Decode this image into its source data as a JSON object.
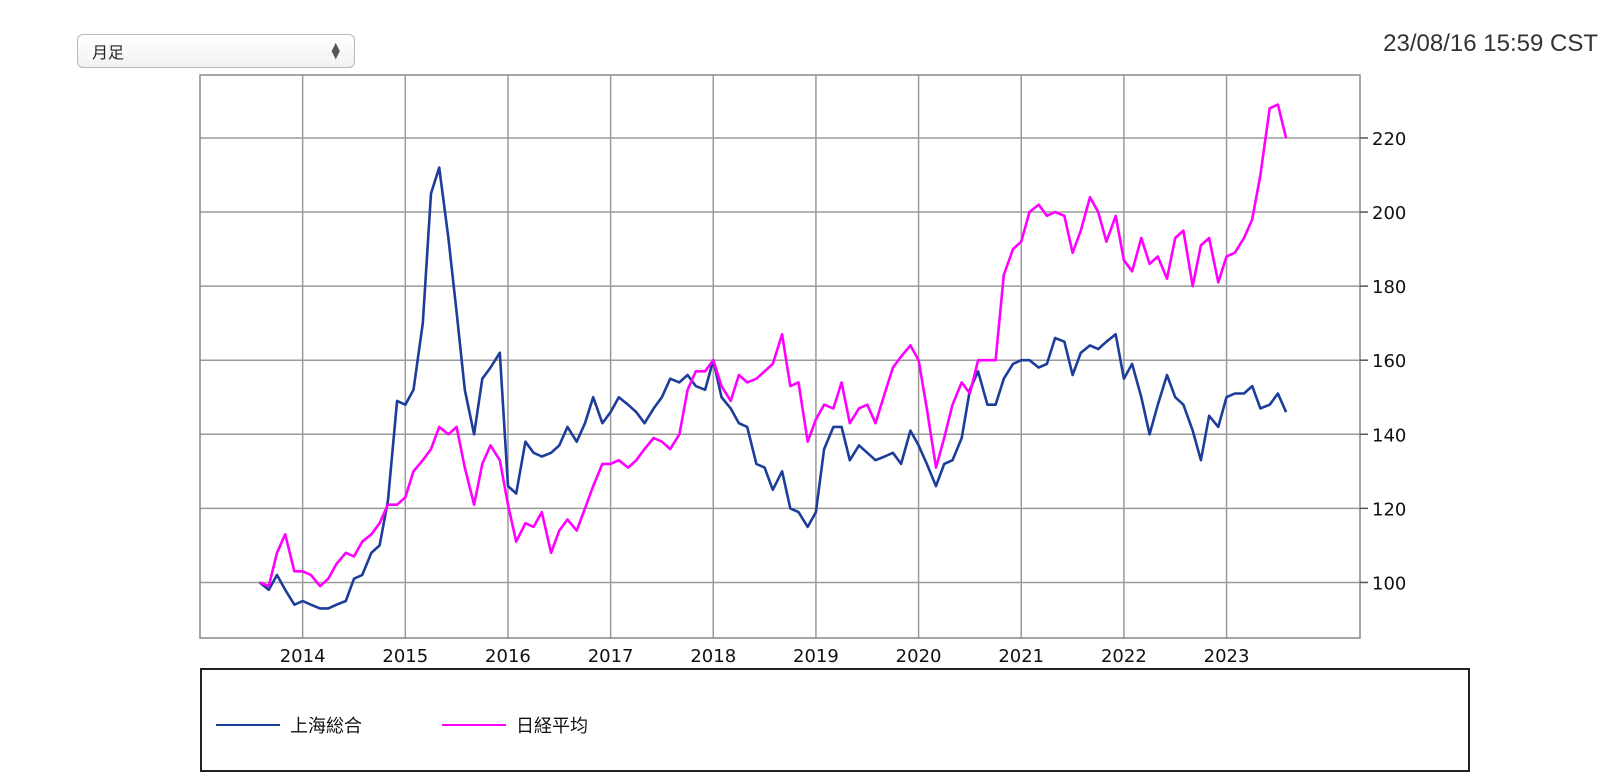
{
  "toolbar": {
    "period_select": {
      "value": "月足"
    }
  },
  "timestamp": "23/08/16 15:59 CST",
  "colors": {
    "shanghai": "#1c3d99",
    "nikkei": "#ff00ff"
  },
  "chart_data": {
    "type": "line",
    "title": "",
    "xlabel": "",
    "ylabel": "",
    "x_ticks": [
      "2014",
      "2015",
      "2016",
      "2017",
      "2018",
      "2019",
      "2020",
      "2021",
      "2022",
      "2023"
    ],
    "y_ticks": [
      100,
      120,
      140,
      160,
      180,
      200,
      220
    ],
    "ylim": [
      85,
      237
    ],
    "xlim": [
      2013.0,
      2024.3
    ],
    "grid": true,
    "legend_position": "bottom",
    "series": [
      {
        "name": "上海総合",
        "color": "#1c3d99",
        "points": [
          [
            2013.58,
            100
          ],
          [
            2013.67,
            98
          ],
          [
            2013.75,
            102
          ],
          [
            2013.83,
            98
          ],
          [
            2013.92,
            94
          ],
          [
            2014.0,
            95
          ],
          [
            2014.08,
            94
          ],
          [
            2014.17,
            93
          ],
          [
            2014.25,
            93
          ],
          [
            2014.33,
            94
          ],
          [
            2014.42,
            95
          ],
          [
            2014.5,
            101
          ],
          [
            2014.58,
            102
          ],
          [
            2014.67,
            108
          ],
          [
            2014.75,
            110
          ],
          [
            2014.83,
            122
          ],
          [
            2014.92,
            149
          ],
          [
            2015.0,
            148
          ],
          [
            2015.08,
            152
          ],
          [
            2015.17,
            170
          ],
          [
            2015.25,
            205
          ],
          [
            2015.33,
            212
          ],
          [
            2015.42,
            193
          ],
          [
            2015.5,
            173
          ],
          [
            2015.58,
            152
          ],
          [
            2015.67,
            140
          ],
          [
            2015.75,
            155
          ],
          [
            2015.83,
            158
          ],
          [
            2015.92,
            162
          ],
          [
            2016.0,
            126
          ],
          [
            2016.08,
            124
          ],
          [
            2016.17,
            138
          ],
          [
            2016.25,
            135
          ],
          [
            2016.33,
            134
          ],
          [
            2016.42,
            135
          ],
          [
            2016.5,
            137
          ],
          [
            2016.58,
            142
          ],
          [
            2016.67,
            138
          ],
          [
            2016.75,
            143
          ],
          [
            2016.83,
            150
          ],
          [
            2016.92,
            143
          ],
          [
            2017.0,
            146
          ],
          [
            2017.08,
            150
          ],
          [
            2017.17,
            148
          ],
          [
            2017.25,
            146
          ],
          [
            2017.33,
            143
          ],
          [
            2017.42,
            147
          ],
          [
            2017.5,
            150
          ],
          [
            2017.58,
            155
          ],
          [
            2017.67,
            154
          ],
          [
            2017.75,
            156
          ],
          [
            2017.83,
            153
          ],
          [
            2017.92,
            152
          ],
          [
            2018.0,
            160
          ],
          [
            2018.08,
            150
          ],
          [
            2018.17,
            147
          ],
          [
            2018.25,
            143
          ],
          [
            2018.33,
            142
          ],
          [
            2018.42,
            132
          ],
          [
            2018.5,
            131
          ],
          [
            2018.58,
            125
          ],
          [
            2018.67,
            130
          ],
          [
            2018.75,
            120
          ],
          [
            2018.83,
            119
          ],
          [
            2018.92,
            115
          ],
          [
            2019.0,
            119
          ],
          [
            2019.08,
            136
          ],
          [
            2019.17,
            142
          ],
          [
            2019.25,
            142
          ],
          [
            2019.33,
            133
          ],
          [
            2019.42,
            137
          ],
          [
            2019.5,
            135
          ],
          [
            2019.58,
            133
          ],
          [
            2019.67,
            134
          ],
          [
            2019.75,
            135
          ],
          [
            2019.83,
            132
          ],
          [
            2019.92,
            141
          ],
          [
            2020.0,
            137
          ],
          [
            2020.08,
            132
          ],
          [
            2020.17,
            126
          ],
          [
            2020.25,
            132
          ],
          [
            2020.33,
            133
          ],
          [
            2020.42,
            139
          ],
          [
            2020.5,
            152
          ],
          [
            2020.58,
            157
          ],
          [
            2020.67,
            148
          ],
          [
            2020.75,
            148
          ],
          [
            2020.83,
            155
          ],
          [
            2020.92,
            159
          ],
          [
            2021.0,
            160
          ],
          [
            2021.08,
            160
          ],
          [
            2021.17,
            158
          ],
          [
            2021.25,
            159
          ],
          [
            2021.33,
            166
          ],
          [
            2021.42,
            165
          ],
          [
            2021.5,
            156
          ],
          [
            2021.58,
            162
          ],
          [
            2021.67,
            164
          ],
          [
            2021.75,
            163
          ],
          [
            2021.83,
            165
          ],
          [
            2021.92,
            167
          ],
          [
            2022.0,
            155
          ],
          [
            2022.08,
            159
          ],
          [
            2022.17,
            150
          ],
          [
            2022.25,
            140
          ],
          [
            2022.33,
            148
          ],
          [
            2022.42,
            156
          ],
          [
            2022.5,
            150
          ],
          [
            2022.58,
            148
          ],
          [
            2022.67,
            141
          ],
          [
            2022.75,
            133
          ],
          [
            2022.83,
            145
          ],
          [
            2022.92,
            142
          ],
          [
            2023.0,
            150
          ],
          [
            2023.08,
            151
          ],
          [
            2023.17,
            151
          ],
          [
            2023.25,
            153
          ],
          [
            2023.33,
            147
          ],
          [
            2023.42,
            148
          ],
          [
            2023.5,
            151
          ],
          [
            2023.58,
            146
          ]
        ]
      },
      {
        "name": "日経平均",
        "color": "#ff00ff",
        "points": [
          [
            2013.58,
            100
          ],
          [
            2013.67,
            99
          ],
          [
            2013.75,
            108
          ],
          [
            2013.83,
            113
          ],
          [
            2013.92,
            103
          ],
          [
            2014.0,
            103
          ],
          [
            2014.08,
            102
          ],
          [
            2014.17,
            99
          ],
          [
            2014.25,
            101
          ],
          [
            2014.33,
            105
          ],
          [
            2014.42,
            108
          ],
          [
            2014.5,
            107
          ],
          [
            2014.58,
            111
          ],
          [
            2014.67,
            113
          ],
          [
            2014.75,
            116
          ],
          [
            2014.83,
            121
          ],
          [
            2014.92,
            121
          ],
          [
            2015.0,
            123
          ],
          [
            2015.08,
            130
          ],
          [
            2015.17,
            133
          ],
          [
            2015.25,
            136
          ],
          [
            2015.33,
            142
          ],
          [
            2015.42,
            140
          ],
          [
            2015.5,
            142
          ],
          [
            2015.58,
            131
          ],
          [
            2015.67,
            121
          ],
          [
            2015.75,
            132
          ],
          [
            2015.83,
            137
          ],
          [
            2015.92,
            133
          ],
          [
            2016.0,
            121
          ],
          [
            2016.08,
            111
          ],
          [
            2016.17,
            116
          ],
          [
            2016.25,
            115
          ],
          [
            2016.33,
            119
          ],
          [
            2016.42,
            108
          ],
          [
            2016.5,
            114
          ],
          [
            2016.58,
            117
          ],
          [
            2016.67,
            114
          ],
          [
            2016.75,
            120
          ],
          [
            2016.83,
            126
          ],
          [
            2016.92,
            132
          ],
          [
            2017.0,
            132
          ],
          [
            2017.08,
            133
          ],
          [
            2017.17,
            131
          ],
          [
            2017.25,
            133
          ],
          [
            2017.33,
            136
          ],
          [
            2017.42,
            139
          ],
          [
            2017.5,
            138
          ],
          [
            2017.58,
            136
          ],
          [
            2017.67,
            140
          ],
          [
            2017.75,
            152
          ],
          [
            2017.83,
            157
          ],
          [
            2017.92,
            157
          ],
          [
            2018.0,
            160
          ],
          [
            2018.08,
            153
          ],
          [
            2018.17,
            149
          ],
          [
            2018.25,
            156
          ],
          [
            2018.33,
            154
          ],
          [
            2018.42,
            155
          ],
          [
            2018.5,
            157
          ],
          [
            2018.58,
            159
          ],
          [
            2018.67,
            167
          ],
          [
            2018.75,
            153
          ],
          [
            2018.83,
            154
          ],
          [
            2018.92,
            138
          ],
          [
            2019.0,
            144
          ],
          [
            2019.08,
            148
          ],
          [
            2019.17,
            147
          ],
          [
            2019.25,
            154
          ],
          [
            2019.33,
            143
          ],
          [
            2019.42,
            147
          ],
          [
            2019.5,
            148
          ],
          [
            2019.58,
            143
          ],
          [
            2019.67,
            151
          ],
          [
            2019.75,
            158
          ],
          [
            2019.83,
            161
          ],
          [
            2019.92,
            164
          ],
          [
            2020.0,
            160
          ],
          [
            2020.08,
            147
          ],
          [
            2020.17,
            131
          ],
          [
            2020.25,
            139
          ],
          [
            2020.33,
            148
          ],
          [
            2020.42,
            154
          ],
          [
            2020.5,
            151
          ],
          [
            2020.58,
            160
          ],
          [
            2020.67,
            160
          ],
          [
            2020.75,
            160
          ],
          [
            2020.83,
            183
          ],
          [
            2020.92,
            190
          ],
          [
            2021.0,
            192
          ],
          [
            2021.08,
            200
          ],
          [
            2021.17,
            202
          ],
          [
            2021.25,
            199
          ],
          [
            2021.33,
            200
          ],
          [
            2021.42,
            199
          ],
          [
            2021.5,
            189
          ],
          [
            2021.58,
            195
          ],
          [
            2021.67,
            204
          ],
          [
            2021.75,
            200
          ],
          [
            2021.83,
            192
          ],
          [
            2021.92,
            199
          ],
          [
            2022.0,
            187
          ],
          [
            2022.08,
            184
          ],
          [
            2022.17,
            193
          ],
          [
            2022.25,
            186
          ],
          [
            2022.33,
            188
          ],
          [
            2022.42,
            182
          ],
          [
            2022.5,
            193
          ],
          [
            2022.58,
            195
          ],
          [
            2022.67,
            180
          ],
          [
            2022.75,
            191
          ],
          [
            2022.83,
            193
          ],
          [
            2022.92,
            181
          ],
          [
            2023.0,
            188
          ],
          [
            2023.08,
            189
          ],
          [
            2023.17,
            193
          ],
          [
            2023.25,
            198
          ],
          [
            2023.33,
            210
          ],
          [
            2023.42,
            228
          ],
          [
            2023.5,
            229
          ],
          [
            2023.58,
            220
          ]
        ]
      }
    ]
  }
}
